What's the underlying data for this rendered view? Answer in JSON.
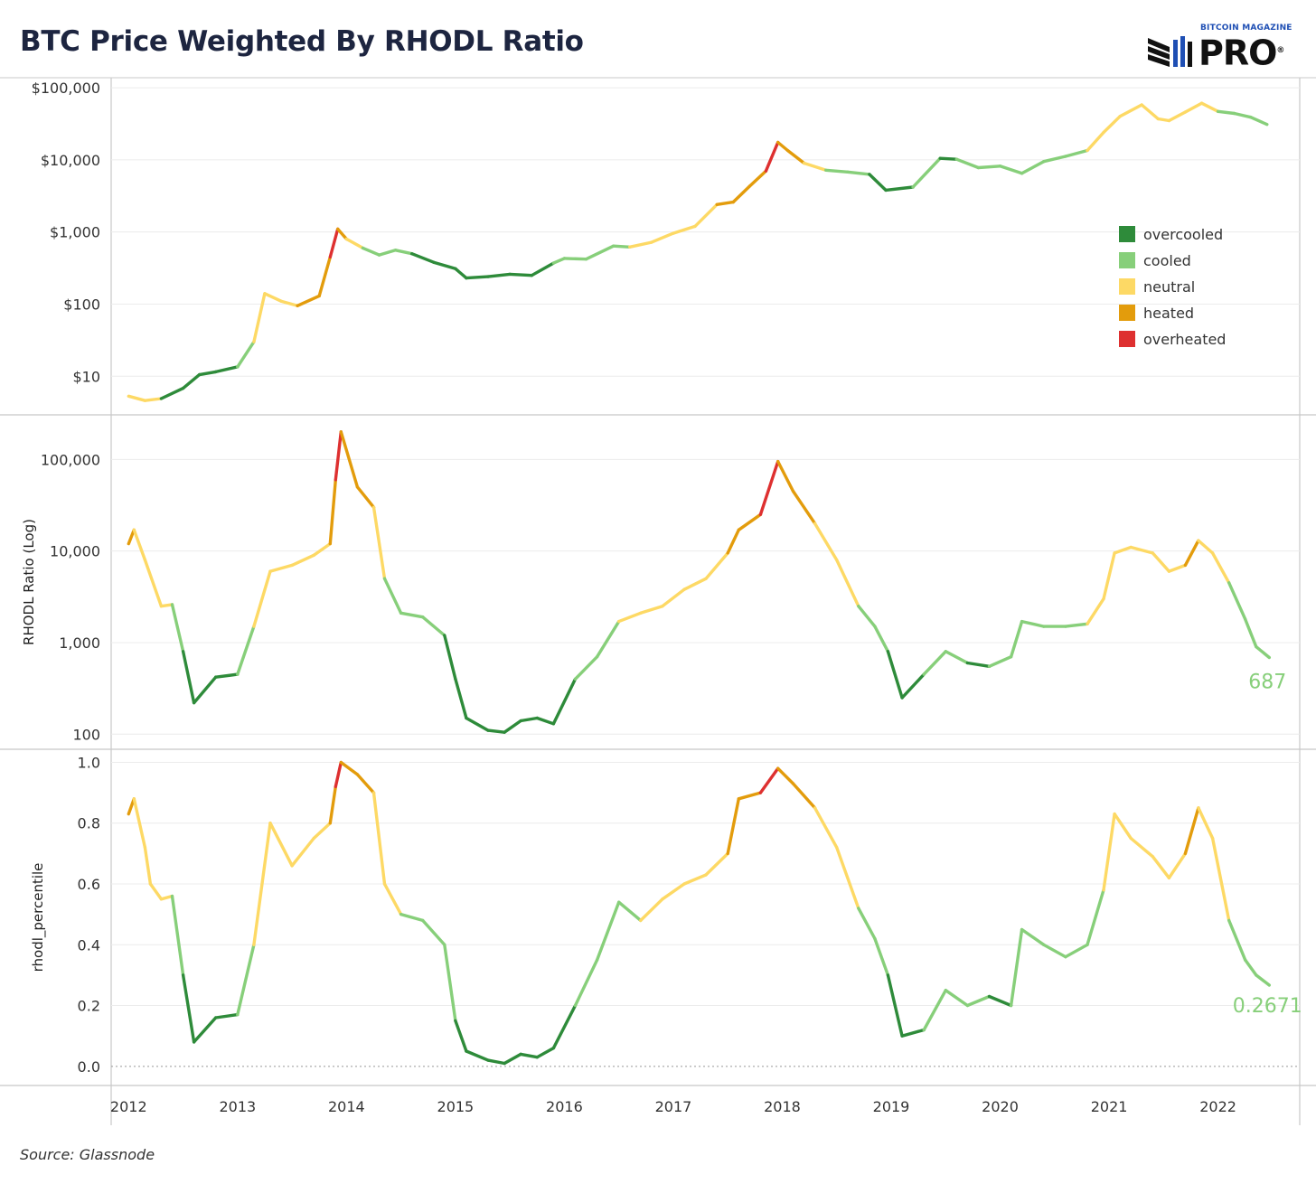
{
  "title": "BTC Price Weighted By RHODL Ratio",
  "logo": {
    "top_text": "BITCOIN MAGAZINE",
    "main_text": "PRO",
    "registered": "®"
  },
  "source": "Source: Glassnode",
  "colors": {
    "overcooled": "#2e8b3a",
    "cooled": "#87cf7a",
    "neutral": "#fdd965",
    "heated": "#e39c0c",
    "overheated": "#de3030",
    "title": "#1d2540",
    "grid": "#ececec",
    "frame": "#c8c8c8"
  },
  "chart_data": [
    {
      "type": "line",
      "id": "price",
      "ylabel": "",
      "scale": "log",
      "ylim": [
        3,
        130000
      ],
      "yticks": [
        10,
        100,
        1000,
        10000,
        100000
      ],
      "ytick_labels": [
        "$10",
        "$100",
        "$1,000",
        "$10,000",
        "$100,000"
      ],
      "x": [
        2012.0,
        2012.15,
        2012.3,
        2012.5,
        2012.65,
        2012.8,
        2013.0,
        2013.15,
        2013.25,
        2013.4,
        2013.55,
        2013.75,
        2013.85,
        2013.92,
        2014.0,
        2014.15,
        2014.3,
        2014.45,
        2014.6,
        2014.8,
        2015.0,
        2015.1,
        2015.3,
        2015.5,
        2015.7,
        2015.9,
        2016.0,
        2016.2,
        2016.45,
        2016.6,
        2016.8,
        2017.0,
        2017.2,
        2017.4,
        2017.55,
        2017.7,
        2017.85,
        2017.96,
        2018.05,
        2018.2,
        2018.4,
        2018.6,
        2018.8,
        2018.95,
        2019.2,
        2019.45,
        2019.6,
        2019.8,
        2020.0,
        2020.2,
        2020.4,
        2020.6,
        2020.8,
        2020.95,
        2021.1,
        2021.3,
        2021.45,
        2021.55,
        2021.7,
        2021.85,
        2022.0,
        2022.15,
        2022.3,
        2022.45
      ],
      "values": [
        5.3,
        4.6,
        4.9,
        6.8,
        10.5,
        11.5,
        13.5,
        30,
        140,
        110,
        95,
        130,
        450,
        1100,
        800,
        600,
        480,
        560,
        500,
        380,
        310,
        230,
        240,
        260,
        250,
        370,
        430,
        420,
        640,
        620,
        720,
        960,
        1200,
        2400,
        2600,
        4300,
        7000,
        17500,
        13500,
        9000,
        7200,
        6800,
        6300,
        3800,
        4200,
        10500,
        10200,
        7800,
        8200,
        6500,
        9500,
        11200,
        13500,
        24000,
        40000,
        58000,
        37000,
        35000,
        46000,
        61000,
        47000,
        44000,
        39000,
        31000
      ],
      "states": [
        "neutral",
        "neutral",
        "neutral",
        "overcooled",
        "overcooled",
        "overcooled",
        "overcooled",
        "cooled",
        "neutral",
        "neutral",
        "neutral",
        "heated",
        "heated",
        "overheated",
        "heated",
        "neutral",
        "cooled",
        "cooled",
        "cooled",
        "overcooled",
        "overcooled",
        "overcooled",
        "overcooled",
        "overcooled",
        "overcooled",
        "overcooled",
        "cooled",
        "cooled",
        "cooled",
        "cooled",
        "neutral",
        "neutral",
        "neutral",
        "neutral",
        "heated",
        "heated",
        "heated",
        "overheated",
        "heated",
        "heated",
        "neutral",
        "cooled",
        "cooled",
        "overcooled",
        "overcooled",
        "cooled",
        "overcooled",
        "cooled",
        "cooled",
        "cooled",
        "cooled",
        "cooled",
        "cooled",
        "neutral",
        "neutral",
        "neutral",
        "neutral",
        "neutral",
        "neutral",
        "neutral",
        "neutral",
        "cooled",
        "cooled",
        "cooled"
      ]
    },
    {
      "type": "line",
      "id": "rhodl",
      "ylabel": "RHODL Ratio (Log)",
      "scale": "log",
      "ylim": [
        70,
        300000
      ],
      "yticks": [
        100,
        1000,
        10000,
        100000
      ],
      "ytick_labels": [
        "100",
        "1,000",
        "10,000",
        "100,000"
      ],
      "end_label": "687",
      "x": [
        2012.0,
        2012.05,
        2012.15,
        2012.3,
        2012.4,
        2012.5,
        2012.6,
        2012.8,
        2013.0,
        2013.15,
        2013.3,
        2013.5,
        2013.7,
        2013.85,
        2013.9,
        2013.95,
        2014.1,
        2014.25,
        2014.35,
        2014.5,
        2014.7,
        2014.9,
        2015.0,
        2015.1,
        2015.3,
        2015.45,
        2015.6,
        2015.75,
        2015.9,
        2016.1,
        2016.3,
        2016.5,
        2016.7,
        2016.9,
        2017.1,
        2017.3,
        2017.5,
        2017.6,
        2017.8,
        2017.96,
        2018.1,
        2018.3,
        2018.5,
        2018.7,
        2018.85,
        2018.97,
        2019.1,
        2019.3,
        2019.5,
        2019.7,
        2019.9,
        2020.1,
        2020.2,
        2020.4,
        2020.6,
        2020.8,
        2020.95,
        2021.05,
        2021.2,
        2021.4,
        2021.55,
        2021.7,
        2021.82,
        2021.95,
        2022.1,
        2022.25,
        2022.35,
        2022.47
      ],
      "values": [
        12000,
        17000,
        8000,
        2500,
        2600,
        800,
        220,
        420,
        450,
        1500,
        6000,
        7000,
        9000,
        12000,
        60000,
        200000,
        50000,
        30000,
        5000,
        2100,
        1900,
        1200,
        400,
        150,
        110,
        105,
        140,
        150,
        130,
        400,
        700,
        1700,
        2100,
        2500,
        3800,
        5000,
        9500,
        17000,
        25000,
        95000,
        45000,
        20000,
        8000,
        2500,
        1500,
        800,
        250,
        450,
        800,
        600,
        550,
        700,
        1700,
        1500,
        1500,
        1600,
        3000,
        9500,
        11000,
        9500,
        6000,
        7000,
        13000,
        9500,
        4500,
        1800,
        900,
        687
      ],
      "states": [
        "neutral",
        "heated",
        "neutral",
        "neutral",
        "neutral",
        "cooled",
        "overcooled",
        "overcooled",
        "overcooled",
        "cooled",
        "neutral",
        "neutral",
        "neutral",
        "neutral",
        "heated",
        "overheated",
        "heated",
        "heated",
        "neutral",
        "cooled",
        "cooled",
        "cooled",
        "overcooled",
        "overcooled",
        "overcooled",
        "overcooled",
        "overcooled",
        "overcooled",
        "overcooled",
        "overcooled",
        "cooled",
        "cooled",
        "neutral",
        "neutral",
        "neutral",
        "neutral",
        "neutral",
        "heated",
        "heated",
        "overheated",
        "heated",
        "heated",
        "neutral",
        "neutral",
        "cooled",
        "cooled",
        "overcooled",
        "overcooled",
        "cooled",
        "cooled",
        "overcooled",
        "cooled",
        "cooled",
        "cooled",
        "cooled",
        "cooled",
        "neutral",
        "neutral",
        "neutral",
        "neutral",
        "neutral",
        "neutral",
        "heated",
        "neutral",
        "neutral",
        "cooled",
        "cooled",
        "cooled"
      ]
    },
    {
      "type": "line",
      "id": "percentile",
      "ylabel": "rhodl_percentile",
      "scale": "linear",
      "ylim": [
        -0.06,
        1.04
      ],
      "yticks": [
        0.0,
        0.2,
        0.4,
        0.6,
        0.8,
        1.0
      ],
      "ytick_labels": [
        "0.0",
        "0.2",
        "0.4",
        "0.6",
        "0.8",
        "1.0"
      ],
      "end_label": "0.2671",
      "x": [
        2012.0,
        2012.05,
        2012.15,
        2012.2,
        2012.3,
        2012.4,
        2012.5,
        2012.6,
        2012.8,
        2013.0,
        2013.15,
        2013.3,
        2013.5,
        2013.7,
        2013.85,
        2013.9,
        2013.95,
        2014.1,
        2014.25,
        2014.35,
        2014.5,
        2014.7,
        2014.9,
        2015.0,
        2015.1,
        2015.3,
        2015.45,
        2015.6,
        2015.75,
        2015.9,
        2016.1,
        2016.3,
        2016.5,
        2016.7,
        2016.9,
        2017.1,
        2017.3,
        2017.5,
        2017.6,
        2017.8,
        2017.96,
        2018.1,
        2018.3,
        2018.5,
        2018.7,
        2018.85,
        2018.97,
        2019.1,
        2019.3,
        2019.5,
        2019.7,
        2019.9,
        2020.1,
        2020.2,
        2020.4,
        2020.6,
        2020.8,
        2020.95,
        2021.05,
        2021.2,
        2021.4,
        2021.55,
        2021.7,
        2021.82,
        2021.95,
        2022.1,
        2022.25,
        2022.35,
        2022.47
      ],
      "values": [
        0.83,
        0.88,
        0.72,
        0.6,
        0.55,
        0.56,
        0.3,
        0.08,
        0.16,
        0.17,
        0.4,
        0.8,
        0.66,
        0.75,
        0.8,
        0.92,
        1.0,
        0.96,
        0.9,
        0.6,
        0.5,
        0.48,
        0.4,
        0.15,
        0.05,
        0.02,
        0.01,
        0.04,
        0.03,
        0.06,
        0.2,
        0.35,
        0.54,
        0.48,
        0.55,
        0.6,
        0.63,
        0.7,
        0.88,
        0.9,
        0.98,
        0.93,
        0.85,
        0.72,
        0.52,
        0.42,
        0.3,
        0.1,
        0.12,
        0.25,
        0.2,
        0.23,
        0.2,
        0.45,
        0.4,
        0.36,
        0.4,
        0.58,
        0.83,
        0.75,
        0.69,
        0.62,
        0.7,
        0.85,
        0.75,
        0.48,
        0.35,
        0.3,
        0.2671
      ],
      "states": [
        "neutral",
        "heated",
        "neutral",
        "neutral",
        "neutral",
        "neutral",
        "cooled",
        "overcooled",
        "overcooled",
        "overcooled",
        "cooled",
        "neutral",
        "neutral",
        "neutral",
        "neutral",
        "heated",
        "overheated",
        "heated",
        "heated",
        "neutral",
        "neutral",
        "cooled",
        "cooled",
        "cooled",
        "overcooled",
        "overcooled",
        "overcooled",
        "overcooled",
        "overcooled",
        "overcooled",
        "overcooled",
        "cooled",
        "cooled",
        "cooled",
        "neutral",
        "neutral",
        "neutral",
        "neutral",
        "heated",
        "heated",
        "overheated",
        "heated",
        "heated",
        "neutral",
        "neutral",
        "cooled",
        "cooled",
        "overcooled",
        "overcooled",
        "cooled",
        "cooled",
        "cooled",
        "overcooled",
        "cooled",
        "cooled",
        "cooled",
        "cooled",
        "cooled",
        "neutral",
        "neutral",
        "neutral",
        "neutral",
        "neutral",
        "heated",
        "neutral",
        "neutral",
        "cooled",
        "cooled",
        "cooled"
      ]
    }
  ],
  "x_axis": {
    "xlim": [
      2011.84,
      2022.75
    ],
    "ticks": [
      2012,
      2013,
      2014,
      2015,
      2016,
      2017,
      2018,
      2019,
      2020,
      2021,
      2022
    ],
    "tick_labels": [
      "2012",
      "2013",
      "2014",
      "2015",
      "2016",
      "2017",
      "2018",
      "2019",
      "2020",
      "2021",
      "2022"
    ]
  },
  "legend": {
    "placement": "top-right of price panel",
    "items": [
      {
        "key": "overcooled",
        "label": "overcooled"
      },
      {
        "key": "cooled",
        "label": "cooled"
      },
      {
        "key": "neutral",
        "label": "neutral"
      },
      {
        "key": "heated",
        "label": "heated"
      },
      {
        "key": "overheated",
        "label": "overheated"
      }
    ]
  }
}
